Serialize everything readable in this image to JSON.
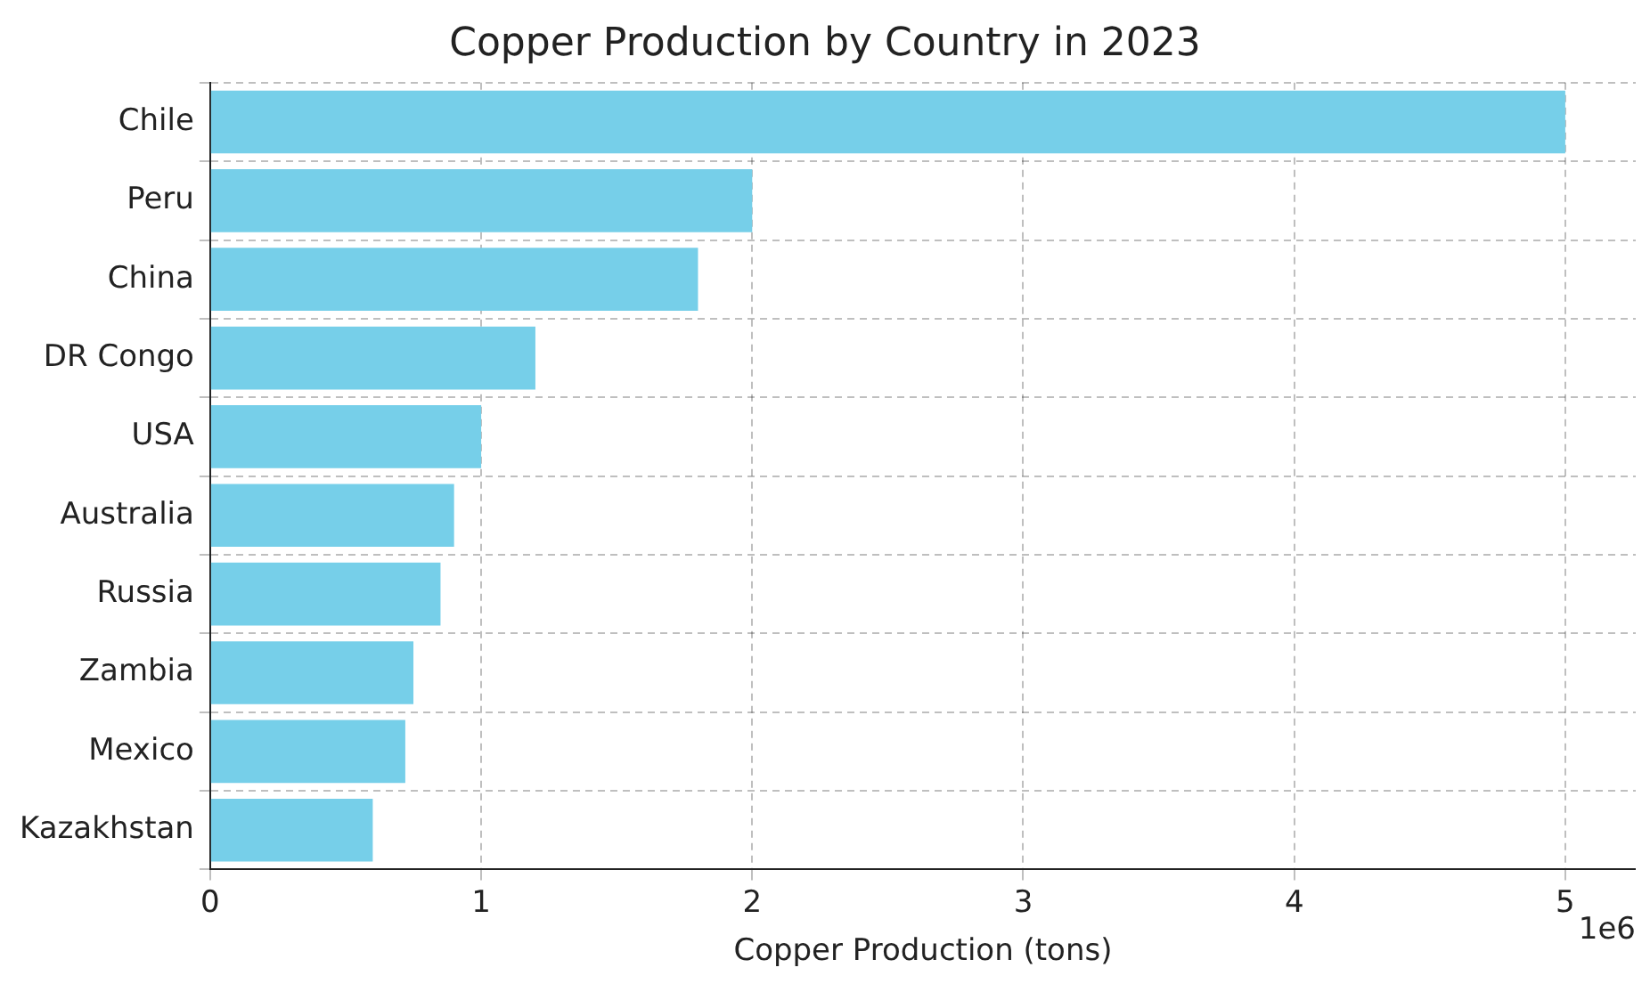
{
  "chart_data": {
    "type": "bar",
    "orientation": "horizontal",
    "title": "Copper Production by Country in 2023",
    "xlabel": "Copper Production (tons)",
    "categories": [
      "Chile",
      "Peru",
      "China",
      "DR Congo",
      "USA",
      "Australia",
      "Russia",
      "Zambia",
      "Mexico",
      "Kazakhstan"
    ],
    "values": [
      5,
      2,
      1.8,
      1.2,
      1,
      0.9,
      0.85,
      0.75,
      0.72,
      0.6
    ],
    "color": "#76cfe9",
    "xlim": [
      0,
      5.26
    ],
    "xticks": [
      0,
      1,
      2,
      3,
      4,
      5
    ],
    "annotations": [
      "1e6"
    ],
    "grid": true,
    "legend": false
  }
}
